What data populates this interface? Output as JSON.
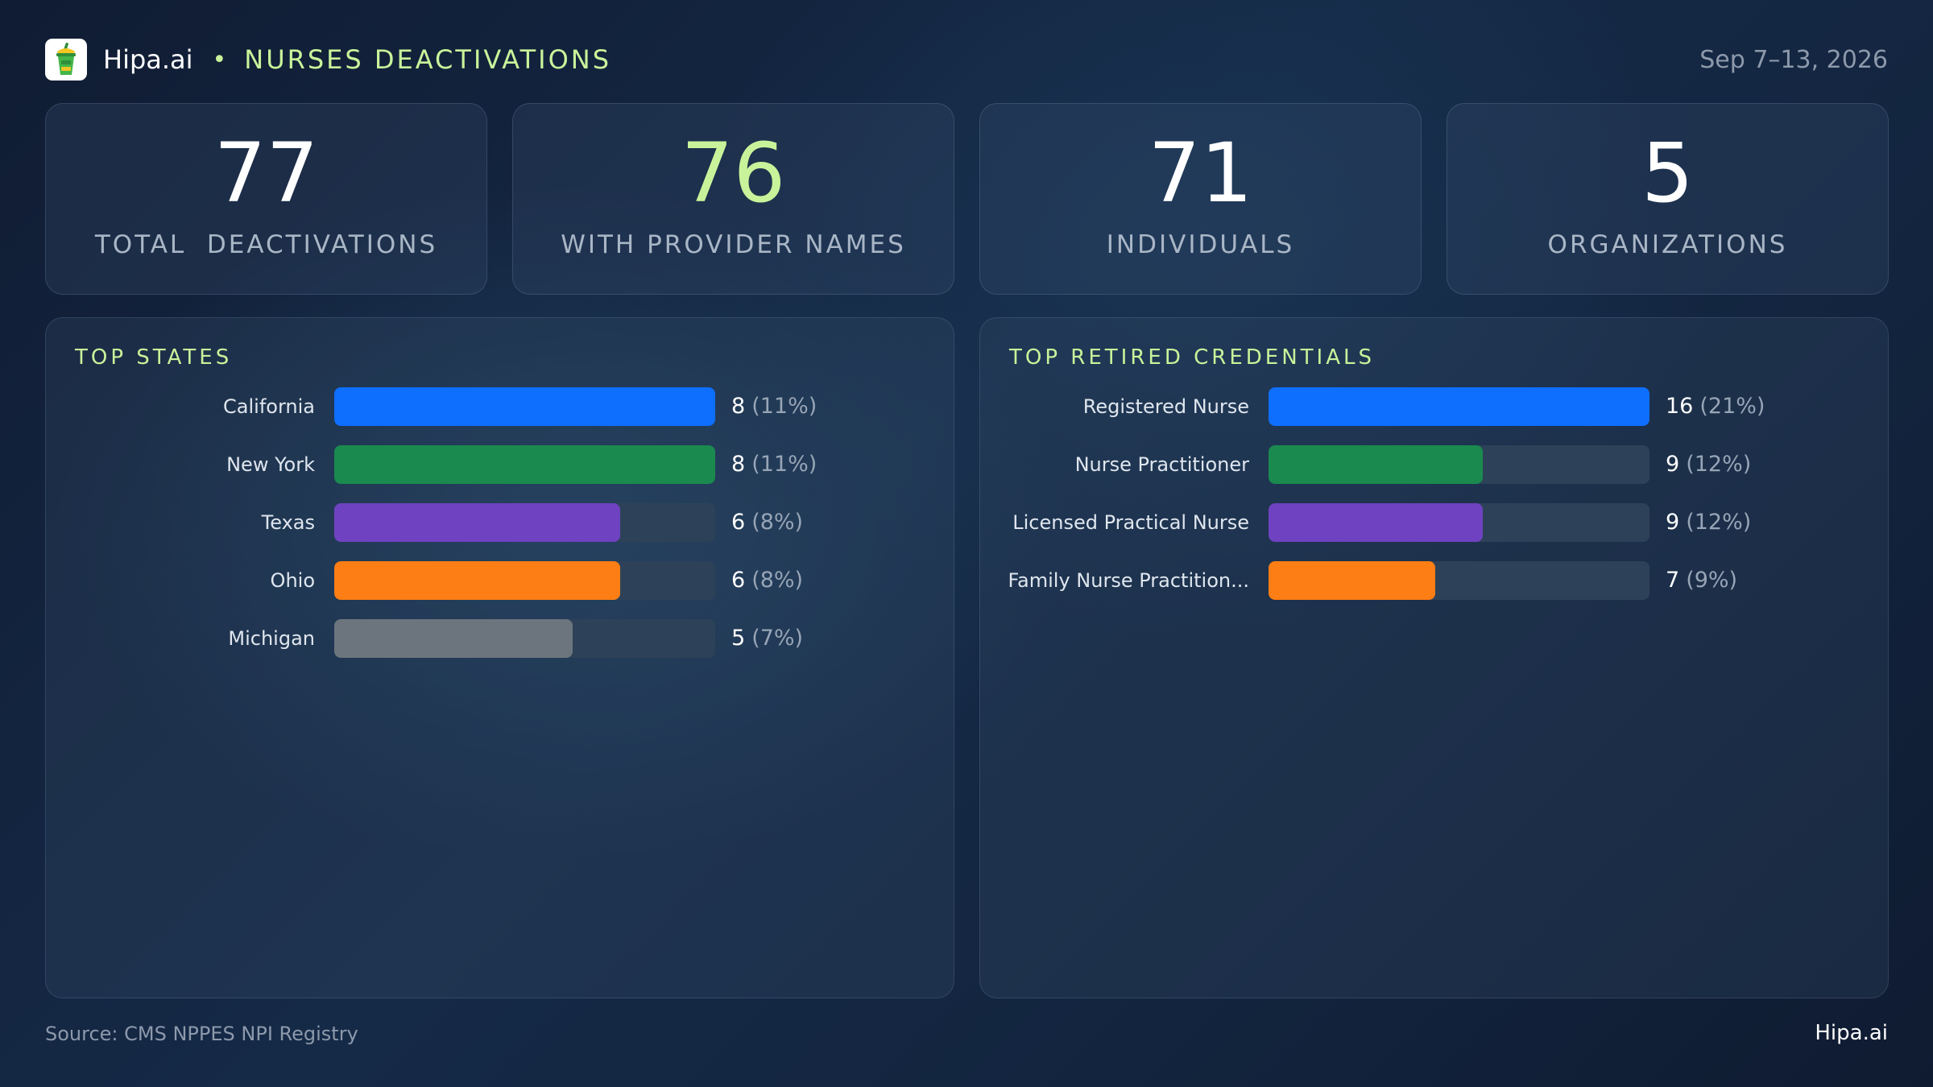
{
  "header": {
    "brand": "Hipa.ai",
    "separator": "•",
    "title": "NURSES DEACTIVATIONS",
    "date_range": "Sep 7–13, 2026",
    "logo_icon": "drink-cup-icon"
  },
  "kpis": [
    {
      "value": "77",
      "label": "TOTAL  DEACTIVATIONS",
      "accent": false
    },
    {
      "value": "76",
      "label": "WITH PROVIDER NAMES",
      "accent": true
    },
    {
      "value": "71",
      "label": "INDIVIDUALS",
      "accent": false
    },
    {
      "value": "5",
      "label": "ORGANIZATIONS",
      "accent": false
    }
  ],
  "chart_data": [
    {
      "type": "bar",
      "orientation": "horizontal",
      "title": "TOP STATES",
      "categories": [
        "California",
        "New York",
        "Texas",
        "Ohio",
        "Michigan"
      ],
      "values": [
        8,
        8,
        6,
        6,
        5
      ],
      "percent_labels": [
        "(11%)",
        "(11%)",
        "(8%)",
        "(8%)",
        "(7%)"
      ],
      "colors": [
        "#0e6efd",
        "#1a8a4e",
        "#6f42c1",
        "#fd7e14",
        "#6c757d"
      ],
      "xlim": [
        0,
        8
      ]
    },
    {
      "type": "bar",
      "orientation": "horizontal",
      "title": "TOP RETIRED CREDENTIALS",
      "categories": [
        "Registered Nurse",
        "Nurse Practitioner",
        "Licensed Practical Nurse",
        "Family Nurse Practition..."
      ],
      "values": [
        16,
        9,
        9,
        7
      ],
      "percent_labels": [
        "(21%)",
        "(12%)",
        "(12%)",
        "(9%)"
      ],
      "colors": [
        "#0e6efd",
        "#1a8a4e",
        "#6f42c1",
        "#fd7e14"
      ],
      "xlim": [
        0,
        16
      ]
    }
  ],
  "footer": {
    "source": "Source: CMS NPPES NPI Registry",
    "brand": "Hipa.ai"
  }
}
